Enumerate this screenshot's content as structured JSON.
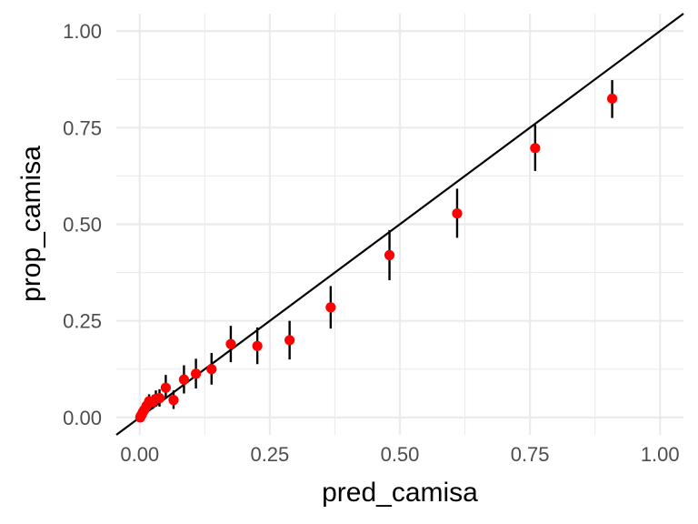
{
  "chart_data": {
    "type": "scatter",
    "title": "",
    "xlabel": "pred_camisa",
    "ylabel": "prop_camisa",
    "xlim": [
      -0.045,
      1.045
    ],
    "ylim": [
      -0.045,
      1.045
    ],
    "xticks": [
      0.0,
      0.25,
      0.5,
      0.75,
      1.0
    ],
    "yticks": [
      0.0,
      0.25,
      0.5,
      0.75,
      1.0
    ],
    "xtick_labels": [
      "0.00",
      "0.25",
      "0.50",
      "0.75",
      "1.00"
    ],
    "ytick_labels": [
      "0.00",
      "0.25",
      "0.50",
      "0.75",
      "1.00"
    ],
    "grid": true,
    "reference_line": {
      "slope": 1,
      "intercept": 0
    },
    "point_color": "#ff0000",
    "errorbar_color": "#000000",
    "points": [
      {
        "x": 0.001,
        "y": 0.0,
        "ymin": 0.0,
        "ymax": 0.003
      },
      {
        "x": 0.002,
        "y": 0.004,
        "ymin": 0.001,
        "ymax": 0.008
      },
      {
        "x": 0.004,
        "y": 0.008,
        "ymin": 0.003,
        "ymax": 0.014
      },
      {
        "x": 0.006,
        "y": 0.014,
        "ymin": 0.006,
        "ymax": 0.022
      },
      {
        "x": 0.009,
        "y": 0.02,
        "ymin": 0.009,
        "ymax": 0.032
      },
      {
        "x": 0.013,
        "y": 0.03,
        "ymin": 0.016,
        "ymax": 0.045
      },
      {
        "x": 0.018,
        "y": 0.042,
        "ymin": 0.024,
        "ymax": 0.06
      },
      {
        "x": 0.025,
        "y": 0.04,
        "ymin": 0.022,
        "ymax": 0.058
      },
      {
        "x": 0.031,
        "y": 0.048,
        "ymin": 0.028,
        "ymax": 0.07
      },
      {
        "x": 0.038,
        "y": 0.05,
        "ymin": 0.028,
        "ymax": 0.073
      },
      {
        "x": 0.05,
        "y": 0.077,
        "ymin": 0.05,
        "ymax": 0.11
      },
      {
        "x": 0.065,
        "y": 0.045,
        "ymin": 0.022,
        "ymax": 0.07
      },
      {
        "x": 0.085,
        "y": 0.098,
        "ymin": 0.062,
        "ymax": 0.135
      },
      {
        "x": 0.108,
        "y": 0.113,
        "ymin": 0.075,
        "ymax": 0.152
      },
      {
        "x": 0.138,
        "y": 0.125,
        "ymin": 0.085,
        "ymax": 0.167
      },
      {
        "x": 0.175,
        "y": 0.19,
        "ymin": 0.143,
        "ymax": 0.237
      },
      {
        "x": 0.226,
        "y": 0.185,
        "ymin": 0.138,
        "ymax": 0.233
      },
      {
        "x": 0.288,
        "y": 0.2,
        "ymin": 0.15,
        "ymax": 0.25
      },
      {
        "x": 0.367,
        "y": 0.285,
        "ymin": 0.23,
        "ymax": 0.34
      },
      {
        "x": 0.48,
        "y": 0.42,
        "ymin": 0.355,
        "ymax": 0.485
      },
      {
        "x": 0.61,
        "y": 0.528,
        "ymin": 0.465,
        "ymax": 0.592
      },
      {
        "x": 0.76,
        "y": 0.697,
        "ymin": 0.638,
        "ymax": 0.757
      },
      {
        "x": 0.908,
        "y": 0.825,
        "ymin": 0.775,
        "ymax": 0.873
      }
    ]
  }
}
